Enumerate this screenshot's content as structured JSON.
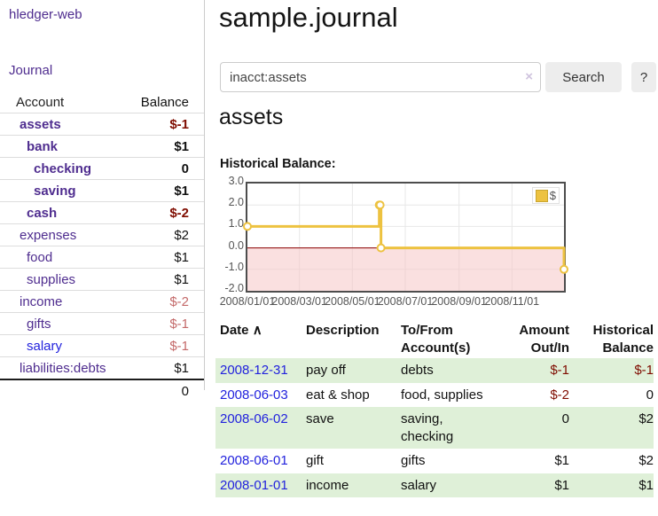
{
  "app": {
    "title": "hledger-web"
  },
  "sidebar": {
    "journal_link": "Journal",
    "accounts": {
      "header_account": "Account",
      "header_balance": "Balance",
      "rows": [
        {
          "name": "assets",
          "balance": "$-1",
          "indent": 0,
          "strong": true
        },
        {
          "name": "bank",
          "balance": "$1",
          "indent": 1,
          "strong": true
        },
        {
          "name": "checking",
          "balance": "0",
          "indent": 2,
          "strong": true
        },
        {
          "name": "saving",
          "balance": "$1",
          "indent": 2,
          "strong": true
        },
        {
          "name": "cash",
          "balance": "$-2",
          "indent": 1,
          "strong": true
        },
        {
          "name": "expenses",
          "balance": "$2",
          "indent": 0,
          "strong": false
        },
        {
          "name": "food",
          "balance": "$1",
          "indent": 1,
          "strong": false
        },
        {
          "name": "supplies",
          "balance": "$1",
          "indent": 1,
          "strong": false
        },
        {
          "name": "income",
          "balance": "$-2",
          "indent": 0,
          "strong": false
        },
        {
          "name": "gifts",
          "balance": "$-1",
          "indent": 1,
          "strong": false
        },
        {
          "name": "salary",
          "balance": "$-1",
          "indent": 1,
          "strong": false
        },
        {
          "name": "liabilities:debts",
          "balance": "$1",
          "indent": 0,
          "strong": false
        }
      ],
      "total": "0"
    }
  },
  "main": {
    "title": "sample.journal",
    "search": {
      "value": "inacct:assets",
      "clear_icon": "×",
      "button_label": "Search",
      "help_label": "?"
    },
    "account_heading": "assets",
    "chart_label": "Historical Balance:"
  },
  "chart_data": {
    "type": "line",
    "step": true,
    "title": "Historical Balance",
    "x_domain": [
      0,
      365
    ],
    "y_domain": [
      -2,
      3
    ],
    "series": [
      {
        "name": "$",
        "color": "#edc240",
        "points": [
          {
            "date": "2008/01/01",
            "day": 0,
            "value": 1
          },
          {
            "date": "2008/06/01",
            "day": 152,
            "value": 2
          },
          {
            "date": "2008/06/02",
            "day": 153,
            "value": 2
          },
          {
            "date": "2008/06/03",
            "day": 154,
            "value": 0
          },
          {
            "date": "2008/12/31",
            "day": 365,
            "value": -1
          }
        ]
      }
    ],
    "x_ticks": [
      {
        "day": 0,
        "label": "2008/01/01"
      },
      {
        "day": 60,
        "label": "2008/03/01"
      },
      {
        "day": 121,
        "label": "2008/05/01"
      },
      {
        "day": 182,
        "label": "2008/07/01"
      },
      {
        "day": 244,
        "label": "2008/09/01"
      },
      {
        "day": 305,
        "label": "2008/11/01"
      }
    ],
    "y_ticks": [
      {
        "value": 3,
        "label": "3.0"
      },
      {
        "value": 2,
        "label": "2.0"
      },
      {
        "value": 1,
        "label": "1.0"
      },
      {
        "value": 0,
        "label": "0.0"
      },
      {
        "value": -1,
        "label": "-1.0"
      },
      {
        "value": -2,
        "label": "-2.0"
      }
    ],
    "legend": {
      "position": "top-right",
      "label": "$"
    },
    "grid": true,
    "negative_region_fill": "#f6c7c7",
    "zero_line_color": "#8b0000"
  },
  "register": {
    "headers": {
      "date": "Date",
      "sort_icon": "∧",
      "description": "Description",
      "account": "To/From Account(s)",
      "amount": "Amount Out/In",
      "balance": "Historical Balance"
    },
    "rows": [
      {
        "date": "2008-12-31",
        "description": "pay off",
        "account": "debts",
        "amount": "$-1",
        "balance": "$-1"
      },
      {
        "date": "2008-06-03",
        "description": "eat & shop",
        "account": "food, supplies",
        "amount": "$-2",
        "balance": "0"
      },
      {
        "date": "2008-06-02",
        "description": "save",
        "account": "saving, checking",
        "amount": "0",
        "balance": "$2"
      },
      {
        "date": "2008-06-01",
        "description": "gift",
        "account": "gifts",
        "amount": "$1",
        "balance": "$2"
      },
      {
        "date": "2008-01-01",
        "description": "income",
        "account": "salary",
        "amount": "$1",
        "balance": "$1"
      }
    ]
  },
  "colors": {
    "link_purple": "#4f2d8f",
    "link_blue": "#2222dd",
    "negative_strong": "#7f0c00",
    "negative_soft": "#c46a6a",
    "row_green": "#dff0d8",
    "series_gold": "#edc240"
  }
}
